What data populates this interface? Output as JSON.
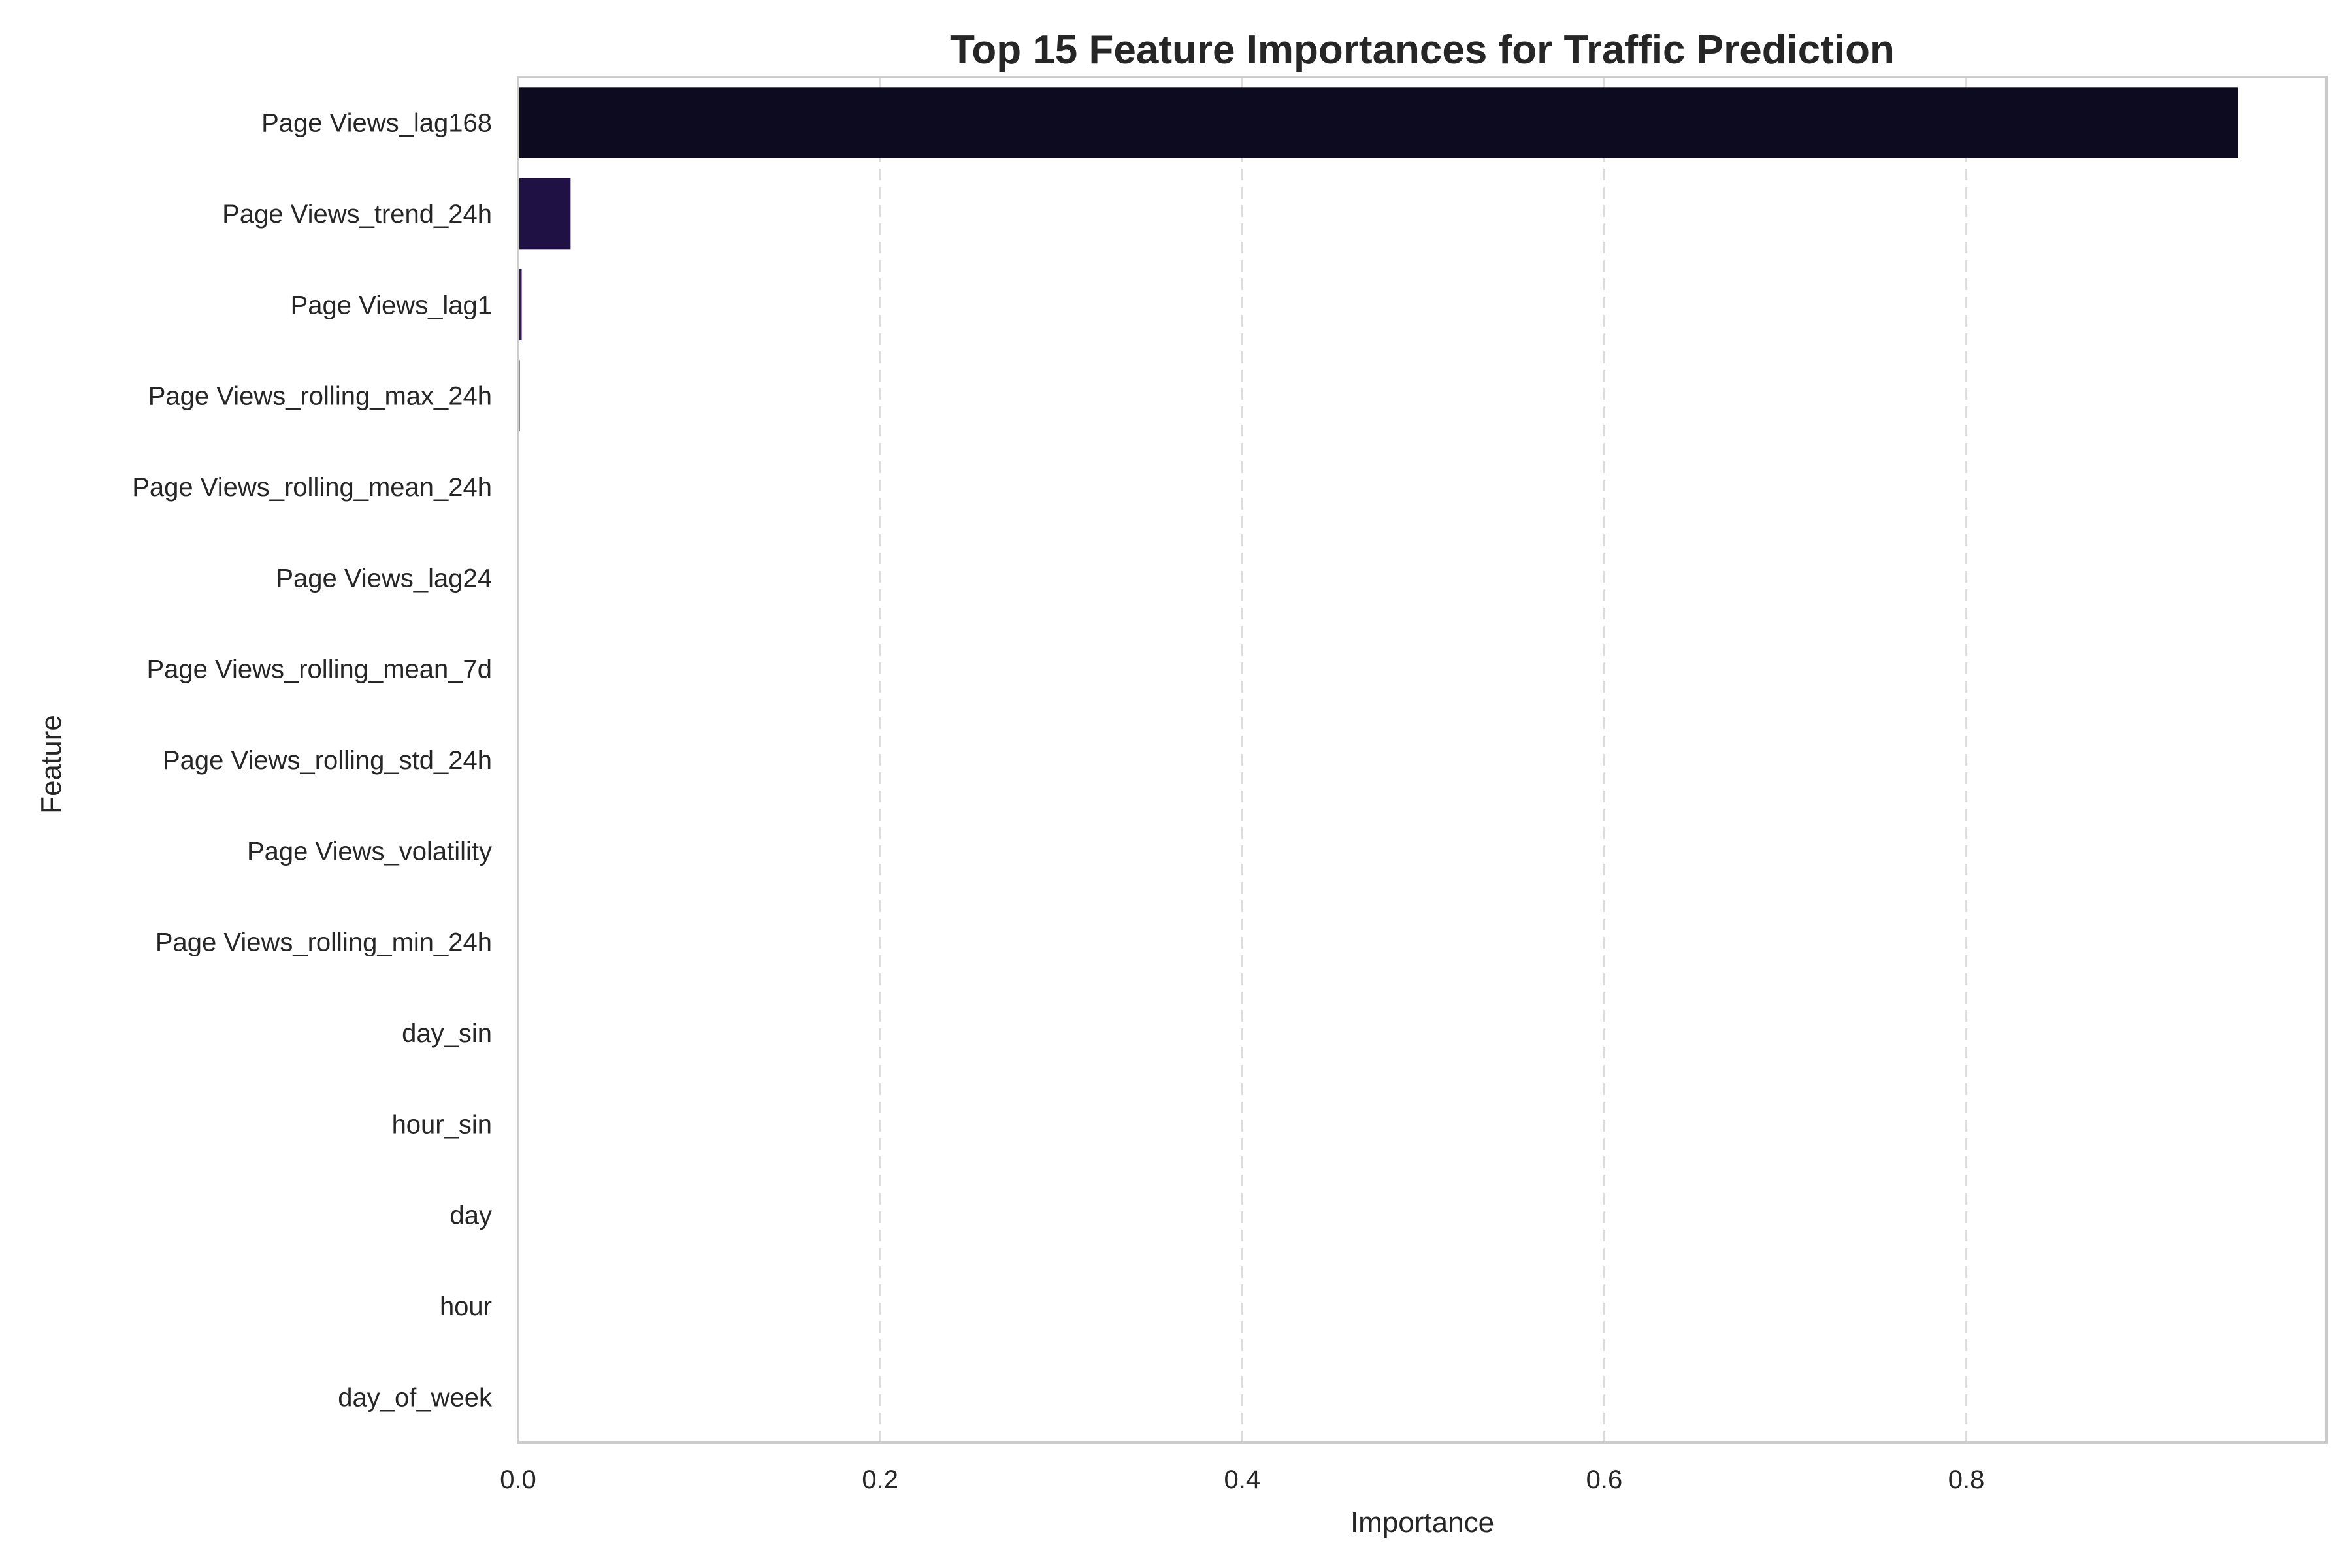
{
  "chart_data": {
    "type": "bar",
    "orientation": "horizontal",
    "title": "Top 15 Feature Importances for Traffic Prediction",
    "xlabel": "Importance",
    "ylabel": "Feature",
    "xlim": [
      0,
      0.999
    ],
    "xticks": [
      0.0,
      0.2,
      0.4,
      0.6,
      0.8
    ],
    "xtick_labels": [
      "0.0",
      "0.2",
      "0.4",
      "0.6",
      "0.8"
    ],
    "grid": "x-dashed",
    "categories": [
      "Page Views_lag168",
      "Page Views_trend_24h",
      "Page Views_lag1",
      "Page Views_rolling_max_24h",
      "Page Views_rolling_mean_24h",
      "Page Views_lag24",
      "Page Views_rolling_mean_7d",
      "Page Views_rolling_std_24h",
      "Page Views_volatility",
      "Page Views_rolling_min_24h",
      "day_sin",
      "hour_sin",
      "day",
      "hour",
      "day_of_week"
    ],
    "values": [
      0.95,
      0.029,
      0.002,
      0.001,
      0.0007,
      0.0002,
      0.0002,
      0.0001,
      0.0001,
      0.0001,
      5e-05,
      5e-05,
      3e-05,
      3e-05,
      2e-05
    ],
    "colors": [
      "#0c0b20",
      "#1f1144",
      "#33175e",
      "#7a5a84",
      "#b3a4c4",
      "#c9bfd6",
      "#d5ccdf",
      "#ddd5e6",
      "#e3dcea",
      "#e7e1ee",
      "#ebe6f1",
      "#eee9f3",
      "#f0ecf5",
      "#f2eff6",
      "#f4f1f8"
    ]
  }
}
